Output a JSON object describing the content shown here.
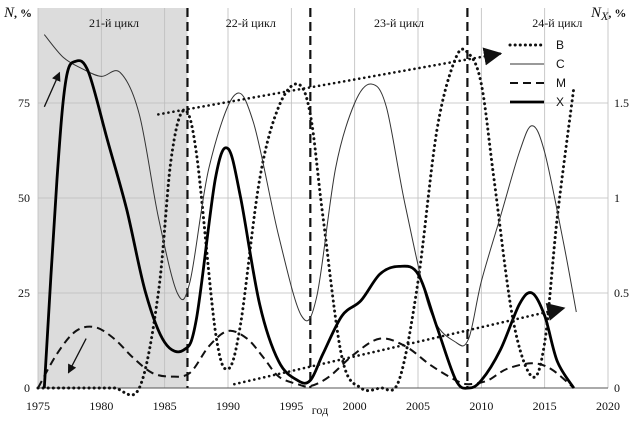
{
  "chart_data": {
    "type": "line",
    "title": "",
    "xlabel": "год",
    "ylabel_left": "N, %",
    "ylabel_right": "N_X, %",
    "ylabel_left_main": "N",
    "ylabel_left_unit": ", %",
    "ylabel_right_main": "N",
    "ylabel_right_sub": "X",
    "ylabel_right_unit": ", %",
    "xlim": [
      1975,
      2020
    ],
    "ylim_left": [
      0,
      100
    ],
    "ylim_right": [
      0,
      2
    ],
    "x_ticks": [
      1975,
      1980,
      1985,
      1990,
      1995,
      2000,
      2005,
      2010,
      2015,
      2020
    ],
    "x_tick_labels": [
      "1975",
      "1980",
      "1985",
      "1990",
      "1995",
      "2000",
      "2005",
      "2010",
      "2015",
      "2020"
    ],
    "y_left_ticks": [
      0,
      25,
      50,
      75
    ],
    "y_left_tick_labels": [
      "0",
      "25",
      "50",
      "75"
    ],
    "y_right_ticks": [
      0,
      0.5,
      1,
      1.5
    ],
    "y_right_tick_labels": [
      "0",
      "0.5",
      "1",
      "1.5"
    ],
    "grid": true,
    "shaded_region": {
      "x": [
        1975,
        1986.8
      ],
      "label": "21-й цикл"
    },
    "cycle_boundaries": [
      1986.8,
      1996.5,
      2008.9
    ],
    "cycle_labels": [
      {
        "text": "21-й цикл",
        "x": 1981
      },
      {
        "text": "22-й цикл",
        "x": 1991.8
      },
      {
        "text": "23-й цикл",
        "x": 2003.5
      },
      {
        "text": "24-й цикл",
        "x": 2016
      }
    ],
    "legend_position": "top-right",
    "series": [
      {
        "name": "B",
        "style": "dotted",
        "axis": "left",
        "x": [
          1975,
          1977,
          1979,
          1981,
          1983,
          1984.5,
          1985.5,
          1986.5,
          1987.5,
          1989,
          1990,
          1991,
          1992.5,
          1994,
          1995.5,
          1996.5,
          1997.5,
          1999,
          2000.5,
          2002,
          2003.5,
          2005,
          2006.5,
          2008,
          2009,
          2010,
          2011,
          2012.5,
          2014,
          2015,
          2016,
          2017.3
        ],
        "values": [
          0,
          0,
          0,
          0,
          0,
          25,
          60,
          73,
          62,
          15,
          5,
          17,
          55,
          74,
          80,
          72,
          45,
          8,
          0,
          0,
          2,
          28,
          68,
          87,
          88,
          80,
          55,
          18,
          3,
          12,
          45,
          79
        ]
      },
      {
        "name": "C",
        "style": "thin",
        "axis": "left",
        "x": [
          1975.5,
          1977,
          1978.5,
          1980,
          1981.5,
          1983,
          1984.5,
          1986,
          1987,
          1988.5,
          1990.5,
          1992,
          1994,
          1995.8,
          1997,
          1998.5,
          2000,
          2001.3,
          2002.5,
          2004,
          2006,
          2008,
          2009,
          2010,
          2011.5,
          2013,
          2014,
          2015,
          2016.5,
          2017.5
        ],
        "values": [
          93,
          87,
          84,
          82,
          83,
          72,
          45,
          25,
          28,
          58,
          77,
          70,
          40,
          19,
          24,
          58,
          75,
          80,
          74,
          48,
          20,
          12,
          13,
          28,
          45,
          62,
          69,
          62,
          38,
          20
        ]
      },
      {
        "name": "M",
        "style": "dashed",
        "axis": "left",
        "x": [
          1975,
          1976.5,
          1978,
          1979.5,
          1981,
          1982.5,
          1984,
          1985.5,
          1987,
          1988.5,
          1990,
          1991.5,
          1992.8,
          1994,
          1995.5,
          1996.5,
          1998,
          2000,
          2002,
          2004,
          2006,
          2008,
          2009,
          2010.5,
          2012,
          2014,
          2015.5,
          2017.3
        ],
        "values": [
          0,
          9,
          15,
          16,
          13,
          8,
          4,
          3,
          4,
          11,
          15,
          13,
          8,
          3,
          1,
          0.5,
          3,
          9,
          13,
          11,
          6,
          2,
          1,
          2,
          5,
          6.5,
          5,
          0
        ]
      },
      {
        "name": "X",
        "style": "thick",
        "axis": "left",
        "x": [
          1975.5,
          1976.5,
          1977.2,
          1978,
          1979,
          1980.5,
          1982,
          1983.5,
          1985,
          1986.5,
          1987.5,
          1989,
          1990,
          1991,
          1992.5,
          1994,
          1995.5,
          1996.5,
          1997.5,
          1999,
          2000.5,
          2002,
          2003.5,
          2005,
          2006.5,
          2008,
          2009,
          2010,
          2011.5,
          2013,
          2014,
          2015,
          2016,
          2017.3
        ],
        "values": [
          0,
          55,
          81,
          86,
          83,
          65,
          47,
          25,
          12,
          10,
          18,
          55,
          63,
          50,
          22,
          7,
          2,
          2,
          9,
          19,
          23,
          30,
          32,
          30,
          16,
          2,
          0,
          2,
          10,
          22,
          25,
          19,
          7,
          0
        ]
      }
    ],
    "annotations": [
      {
        "type": "trend-arrow",
        "style": "dotted",
        "from": [
          1984.5,
          72
        ],
        "to": [
          2011.5,
          88
        ]
      },
      {
        "type": "trend-arrow",
        "style": "dotted",
        "from": [
          1990.5,
          1
        ],
        "to": [
          2016.5,
          21
        ]
      },
      {
        "type": "arrow",
        "style": "solid",
        "from": [
          1975.5,
          74
        ],
        "to": [
          1976.7,
          83
        ]
      },
      {
        "type": "arrow",
        "style": "solid",
        "from": [
          1978.8,
          13
        ],
        "to": [
          1977.4,
          4
        ]
      }
    ]
  }
}
